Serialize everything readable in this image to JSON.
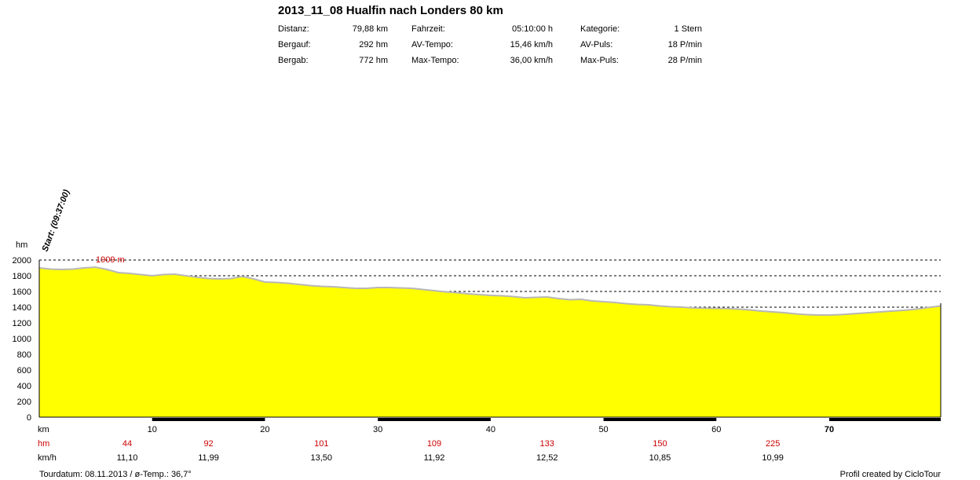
{
  "header": {
    "title": "2013_11_08 Hualfin nach Londers 80 km",
    "stats": [
      {
        "label": "Distanz:",
        "value": "79,88 km"
      },
      {
        "label": "Bergauf:",
        "value": "292 hm"
      },
      {
        "label": "Bergab:",
        "value": "772 hm"
      },
      {
        "label": "Fahrzeit:",
        "value": "05:10:00 h"
      },
      {
        "label": "AV-Tempo:",
        "value": "15,46 km/h"
      },
      {
        "label": "Max-Tempo:",
        "value": "36,00 km/h"
      },
      {
        "label": "Kategorie:",
        "value": "1 Stern"
      },
      {
        "label": "AV-Puls:",
        "value": "18 P/min"
      },
      {
        "label": "Max-Puls:",
        "value": "28 P/min"
      }
    ]
  },
  "chart_data": {
    "type": "area",
    "ylabel": "hm",
    "xlabel": "km",
    "ylim": [
      0,
      2000
    ],
    "xlim": [
      0,
      79.88
    ],
    "yticks": [
      0,
      200,
      400,
      600,
      800,
      1000,
      1200,
      1400,
      1600,
      1800,
      2000
    ],
    "xticks": [
      10,
      20,
      30,
      40,
      50,
      60,
      70
    ],
    "grid": "horizontal-dashed",
    "start_label": "Start: (09:37:00)",
    "max_label": "1909 m",
    "fill_color": "#ffff00",
    "line_color": "#b8b8b8",
    "x": [
      0,
      1,
      2,
      3,
      4,
      5,
      6,
      7,
      8,
      9,
      10,
      11,
      12,
      13,
      14,
      15,
      16,
      17,
      18,
      19,
      20,
      21,
      22,
      23,
      24,
      25,
      26,
      27,
      28,
      29,
      30,
      31,
      32,
      33,
      34,
      35,
      36,
      37,
      38,
      39,
      40,
      41,
      42,
      43,
      44,
      45,
      46,
      47,
      48,
      49,
      50,
      51,
      52,
      53,
      54,
      55,
      56,
      57,
      58,
      59,
      60,
      61,
      62,
      63,
      64,
      65,
      66,
      67,
      68,
      69,
      70,
      71,
      72,
      73,
      74,
      75,
      76,
      77,
      78,
      79,
      79.88
    ],
    "y": [
      1900,
      1885,
      1880,
      1885,
      1900,
      1909,
      1880,
      1840,
      1830,
      1815,
      1800,
      1815,
      1820,
      1800,
      1780,
      1765,
      1760,
      1765,
      1790,
      1760,
      1720,
      1715,
      1705,
      1690,
      1675,
      1665,
      1660,
      1650,
      1640,
      1640,
      1650,
      1650,
      1645,
      1640,
      1625,
      1610,
      1595,
      1585,
      1570,
      1560,
      1550,
      1545,
      1535,
      1520,
      1525,
      1530,
      1510,
      1495,
      1500,
      1480,
      1470,
      1460,
      1445,
      1435,
      1430,
      1415,
      1405,
      1400,
      1390,
      1388,
      1385,
      1382,
      1375,
      1365,
      1350,
      1340,
      1330,
      1315,
      1305,
      1300,
      1300,
      1305,
      1315,
      1325,
      1335,
      1345,
      1355,
      1365,
      1380,
      1400,
      1415
    ],
    "segments": {
      "hm_label": "hm",
      "kmh_label": "km/h",
      "hm": [
        "44",
        "92",
        "101",
        "109",
        "133",
        "150",
        "225"
      ],
      "kmh": [
        "11,10",
        "11,99",
        "13,50",
        "11,92",
        "12,52",
        "10,85",
        "10,99"
      ]
    }
  },
  "footer": {
    "left": "Tourdatum: 08.11.2013  /  ø-Temp.: 36,7°",
    "right": "Profil created by CicloTour"
  }
}
